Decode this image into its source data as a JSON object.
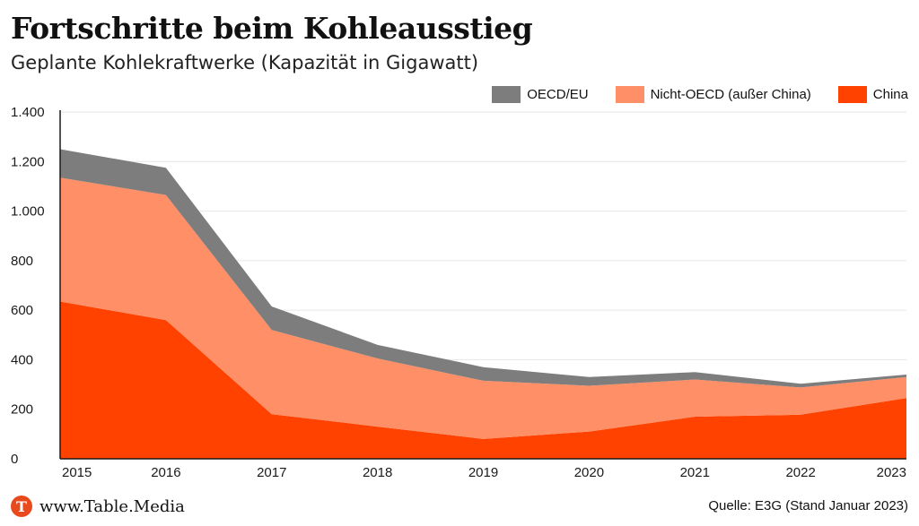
{
  "colors": {
    "OECD/EU": "#7d7d7d",
    "Nicht-OECD (außer China)": "#ff8f66",
    "China": "#ff4200"
  },
  "footer": {
    "logo_letter": "T",
    "website": "www.Table.Media",
    "source": "Quelle: E3G (Stand Januar 2023)"
  },
  "chart_data": {
    "type": "area",
    "stacked": true,
    "title": "Fortschritte beim Kohleausstieg",
    "subtitle": "Geplante Kohlekraftwerke (Kapazität in Gigawatt)",
    "xlabel": "",
    "ylabel": "",
    "x": [
      "2015",
      "2016",
      "2017",
      "2018",
      "2019",
      "2020",
      "2021",
      "2022",
      "2023"
    ],
    "ylim": [
      0,
      1400
    ],
    "yticks": [
      0,
      200,
      400,
      600,
      800,
      1000,
      1200,
      1400
    ],
    "ytick_labels": [
      "0",
      "200",
      "400",
      "600",
      "800",
      "1.000",
      "1.200",
      "1.400"
    ],
    "grid": true,
    "legend_position": "top-right",
    "series": [
      {
        "name": "China",
        "values": [
          635,
          560,
          180,
          130,
          80,
          110,
          170,
          178,
          245
        ]
      },
      {
        "name": "Nicht-OECD (außer China)",
        "values": [
          500,
          505,
          340,
          275,
          235,
          185,
          150,
          110,
          85
        ]
      },
      {
        "name": "OECD/EU",
        "values": [
          115,
          110,
          95,
          55,
          55,
          35,
          30,
          15,
          10
        ]
      }
    ],
    "legend_order": [
      "OECD/EU",
      "Nicht-OECD (außer China)",
      "China"
    ]
  }
}
